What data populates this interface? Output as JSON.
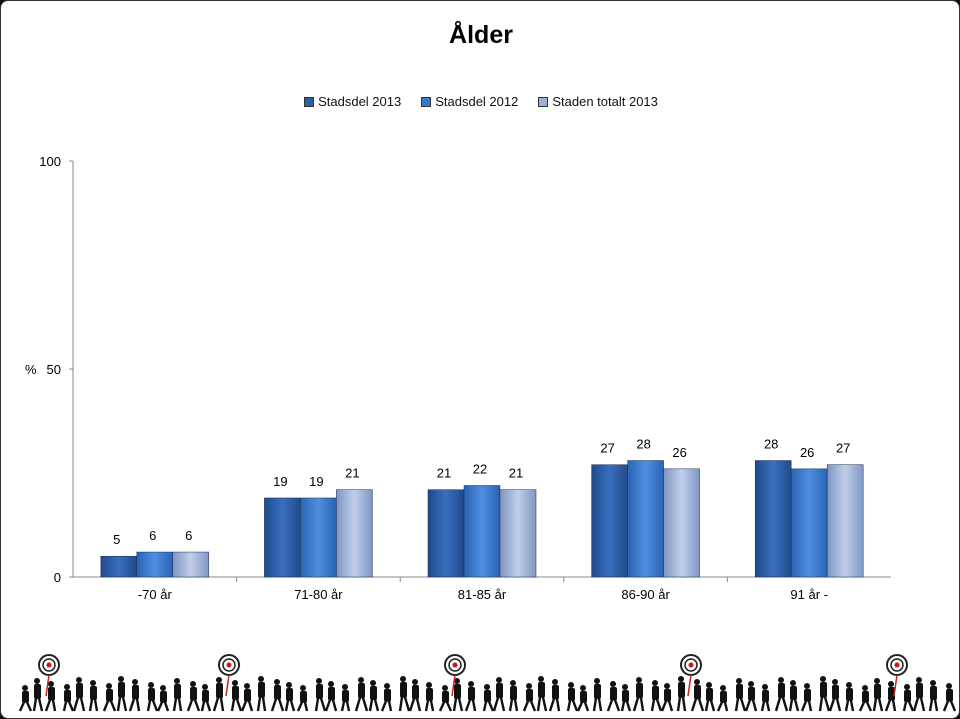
{
  "chart_data": {
    "type": "bar",
    "title": "Ålder",
    "ylabel": "%",
    "ylim": [
      0,
      100
    ],
    "yticks": [
      0,
      50,
      100
    ],
    "grid": false,
    "legend_position": "top-center",
    "categories": [
      "-70 år",
      "71-80 år",
      "81-85 år",
      "86-90 år",
      "91 år -"
    ],
    "series": [
      {
        "name": "Stadsdel 2013",
        "color": "#2f5fa8",
        "values": [
          5,
          19,
          21,
          27,
          28
        ]
      },
      {
        "name": "Stadsdel 2012",
        "color": "#3b78cc",
        "values": [
          6,
          19,
          22,
          28,
          26
        ]
      },
      {
        "name": "Staden totalt 2013",
        "color": "#9cb1d6",
        "values": [
          6,
          21,
          21,
          26,
          27
        ]
      }
    ]
  },
  "decoration": {
    "footer_icons": [
      "walking-people-silhouettes-icon",
      "target-icon"
    ]
  }
}
